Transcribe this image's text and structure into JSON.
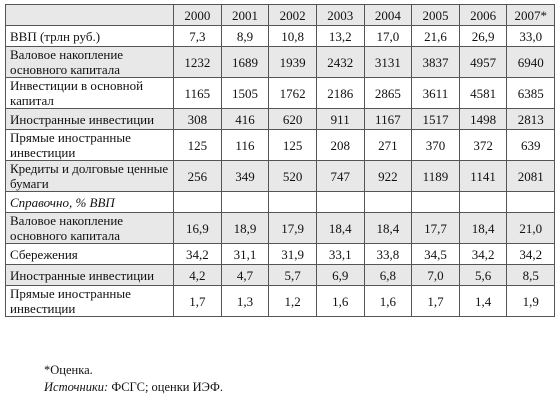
{
  "table": {
    "years": [
      "2000",
      "2001",
      "2002",
      "2003",
      "2004",
      "2005",
      "2006",
      "2007*"
    ],
    "rows": [
      {
        "label": "ВВП (трлн руб.)",
        "values": [
          "7,3",
          "8,9",
          "10,8",
          "13,2",
          "17,0",
          "21,6",
          "26,9",
          "33,0"
        ]
      },
      {
        "label": "Валовое накопление основного капитала",
        "values": [
          "1232",
          "1689",
          "1939",
          "2432",
          "3131",
          "3837",
          "4957",
          "6940"
        ]
      },
      {
        "label": "Инвестиции в основной капитал",
        "values": [
          "1165",
          "1505",
          "1762",
          "2186",
          "2865",
          "3611",
          "4581",
          "6385"
        ]
      },
      {
        "label": "Иностранные инвестиции",
        "values": [
          "308",
          "416",
          "620",
          "911",
          "1167",
          "1517",
          "1498",
          "2813"
        ]
      },
      {
        "label": "Прямые иностранные инвестиции",
        "values": [
          "125",
          "116",
          "125",
          "208",
          "271",
          "370",
          "372",
          "639"
        ]
      },
      {
        "label": "Кредиты и долговые ценные бумаги",
        "values": [
          "256",
          "349",
          "520",
          "747",
          "922",
          "1189",
          "1141",
          "2081"
        ]
      },
      {
        "label": "Справочно, % ВВП",
        "values": []
      },
      {
        "label": "Валовое накопление основного капитала",
        "values": [
          "16,9",
          "18,9",
          "17,9",
          "18,4",
          "18,4",
          "17,7",
          "18,4",
          "21,0"
        ]
      },
      {
        "label": "Сбережения",
        "values": [
          "34,2",
          "31,1",
          "31,9",
          "33,1",
          "33,8",
          "34,5",
          "34,2",
          "34,2"
        ]
      },
      {
        "label": "Иностранные инвестиции",
        "values": [
          "4,2",
          "4,7",
          "5,7",
          "6,9",
          "6,8",
          "7,0",
          "5,6",
          "8,5"
        ]
      },
      {
        "label": "Прямые иностранные инвестиции",
        "values": [
          "1,7",
          "1,3",
          "1,2",
          "1,6",
          "1,6",
          "1,7",
          "1,4",
          "1,9"
        ]
      }
    ]
  },
  "notes": {
    "estimate": "*Оценка.",
    "sources_label": "Источники:",
    "sources": "ФСГС; оценки ИЭФ."
  }
}
